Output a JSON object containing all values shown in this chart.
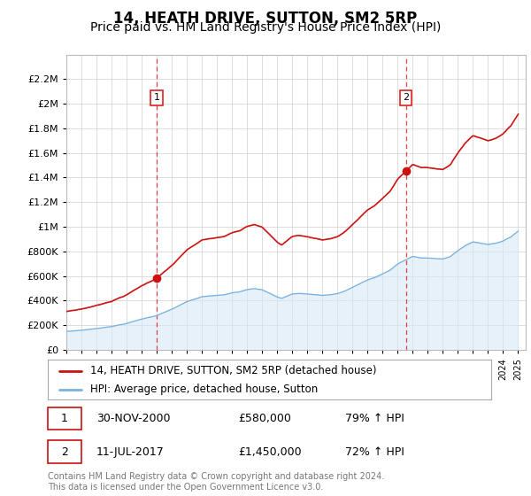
{
  "title": "14, HEATH DRIVE, SUTTON, SM2 5RP",
  "subtitle": "Price paid vs. HM Land Registry's House Price Index (HPI)",
  "footer": "Contains HM Land Registry data © Crown copyright and database right 2024.\nThis data is licensed under the Open Government Licence v3.0.",
  "legend_line1": "14, HEATH DRIVE, SUTTON, SM2 5RP (detached house)",
  "legend_line2": "HPI: Average price, detached house, Sutton",
  "sale1_date": "30-NOV-2000",
  "sale1_price": "£580,000",
  "sale1_hpi": "79% ↑ HPI",
  "sale2_date": "11-JUL-2017",
  "sale2_price": "£1,450,000",
  "sale2_hpi": "72% ↑ HPI",
  "sale1_year": 2001.0,
  "sale2_year": 2017.54,
  "sale1_value": 580000,
  "sale2_value": 1450000,
  "hpi_color": "#7ab3e0",
  "hpi_fill_color": "#d8e8f5",
  "price_color": "#cc1111",
  "vline_color": "#dd2222",
  "marker_color": "#cc1111",
  "ylim_min": 0,
  "ylim_max": 2400000,
  "ytick_max": 2200000,
  "xmin": 1995.0,
  "xmax": 2025.5,
  "grid_color": "#d0d0d0",
  "title_fontsize": 12,
  "subtitle_fontsize": 10
}
